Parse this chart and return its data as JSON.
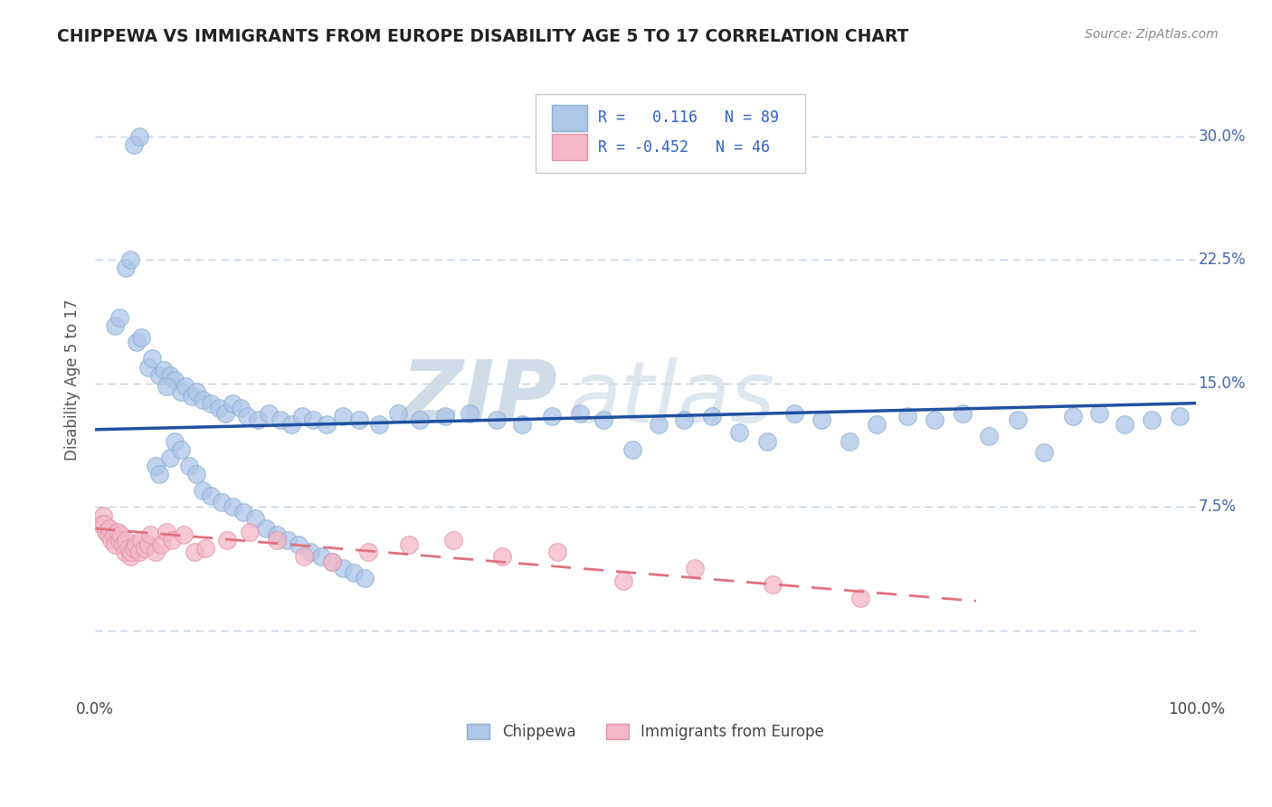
{
  "title": "CHIPPEWA VS IMMIGRANTS FROM EUROPE DISABILITY AGE 5 TO 17 CORRELATION CHART",
  "source": "Source: ZipAtlas.com",
  "ylabel": "Disability Age 5 to 17",
  "xlim": [
    0.0,
    1.0
  ],
  "ylim": [
    -0.04,
    0.345
  ],
  "yticks": [
    0.0,
    0.075,
    0.15,
    0.225,
    0.3
  ],
  "yticklabels": [
    "",
    "7.5%",
    "15.0%",
    "22.5%",
    "30.0%"
  ],
  "chippewa_color": "#aec6e8",
  "chippewa_edge": "#8aaed0",
  "immigrant_color": "#f4b8c8",
  "immigrant_edge": "#e090a8",
  "chippewa_line_color": "#2050a0",
  "immigrant_line_color": "#e07080",
  "background_color": "#ffffff",
  "grid_color": "#c0d0e0",
  "watermark_color": "#d0dce8",
  "chip_x": [
    0.035,
    0.04,
    0.018,
    0.022,
    0.028,
    0.032,
    0.038,
    0.042,
    0.048,
    0.052,
    0.058,
    0.062,
    0.068,
    0.072,
    0.078,
    0.082,
    0.088,
    0.092,
    0.098,
    0.105,
    0.112,
    0.118,
    0.125,
    0.132,
    0.138,
    0.148,
    0.158,
    0.168,
    0.178,
    0.188,
    0.198,
    0.21,
    0.225,
    0.24,
    0.258,
    0.275,
    0.295,
    0.318,
    0.34,
    0.365,
    0.388,
    0.415,
    0.44,
    0.462,
    0.488,
    0.512,
    0.535,
    0.56,
    0.585,
    0.61,
    0.635,
    0.66,
    0.685,
    0.71,
    0.738,
    0.762,
    0.788,
    0.812,
    0.838,
    0.862,
    0.888,
    0.912,
    0.935,
    0.96,
    0.985,
    0.065,
    0.068,
    0.055,
    0.058,
    0.072,
    0.078,
    0.085,
    0.092,
    0.098,
    0.105,
    0.115,
    0.125,
    0.135,
    0.145,
    0.155,
    0.165,
    0.175,
    0.185,
    0.195,
    0.205,
    0.215,
    0.225,
    0.235,
    0.245
  ],
  "chip_y": [
    0.295,
    0.3,
    0.185,
    0.19,
    0.22,
    0.225,
    0.175,
    0.178,
    0.16,
    0.165,
    0.155,
    0.158,
    0.155,
    0.152,
    0.145,
    0.148,
    0.142,
    0.145,
    0.14,
    0.138,
    0.135,
    0.132,
    0.138,
    0.135,
    0.13,
    0.128,
    0.132,
    0.128,
    0.125,
    0.13,
    0.128,
    0.125,
    0.13,
    0.128,
    0.125,
    0.132,
    0.128,
    0.13,
    0.132,
    0.128,
    0.125,
    0.13,
    0.132,
    0.128,
    0.11,
    0.125,
    0.128,
    0.13,
    0.12,
    0.115,
    0.132,
    0.128,
    0.115,
    0.125,
    0.13,
    0.128,
    0.132,
    0.118,
    0.128,
    0.108,
    0.13,
    0.132,
    0.125,
    0.128,
    0.13,
    0.148,
    0.105,
    0.1,
    0.095,
    0.115,
    0.11,
    0.1,
    0.095,
    0.085,
    0.082,
    0.078,
    0.075,
    0.072,
    0.068,
    0.062,
    0.058,
    0.055,
    0.052,
    0.048,
    0.045,
    0.042,
    0.038,
    0.035,
    0.032
  ],
  "imm_x": [
    0.005,
    0.007,
    0.008,
    0.01,
    0.012,
    0.013,
    0.015,
    0.017,
    0.018,
    0.02,
    0.022,
    0.023,
    0.025,
    0.027,
    0.028,
    0.03,
    0.032,
    0.033,
    0.035,
    0.037,
    0.04,
    0.042,
    0.045,
    0.048,
    0.05,
    0.055,
    0.06,
    0.065,
    0.07,
    0.08,
    0.09,
    0.1,
    0.12,
    0.14,
    0.165,
    0.19,
    0.215,
    0.248,
    0.285,
    0.325,
    0.37,
    0.42,
    0.48,
    0.545,
    0.615,
    0.695
  ],
  "imm_y": [
    0.065,
    0.07,
    0.065,
    0.06,
    0.058,
    0.062,
    0.055,
    0.058,
    0.052,
    0.06,
    0.055,
    0.058,
    0.052,
    0.048,
    0.055,
    0.05,
    0.045,
    0.048,
    0.05,
    0.052,
    0.048,
    0.055,
    0.05,
    0.052,
    0.058,
    0.048,
    0.052,
    0.06,
    0.055,
    0.058,
    0.048,
    0.05,
    0.055,
    0.06,
    0.055,
    0.045,
    0.042,
    0.048,
    0.052,
    0.055,
    0.045,
    0.048,
    0.03,
    0.038,
    0.028,
    0.02
  ],
  "chip_line_x0": 0.0,
  "chip_line_x1": 1.0,
  "chip_line_y0": 0.122,
  "chip_line_y1": 0.138,
  "imm_line_x0": 0.0,
  "imm_line_x1": 0.8,
  "imm_line_y0": 0.062,
  "imm_line_y1": 0.018
}
